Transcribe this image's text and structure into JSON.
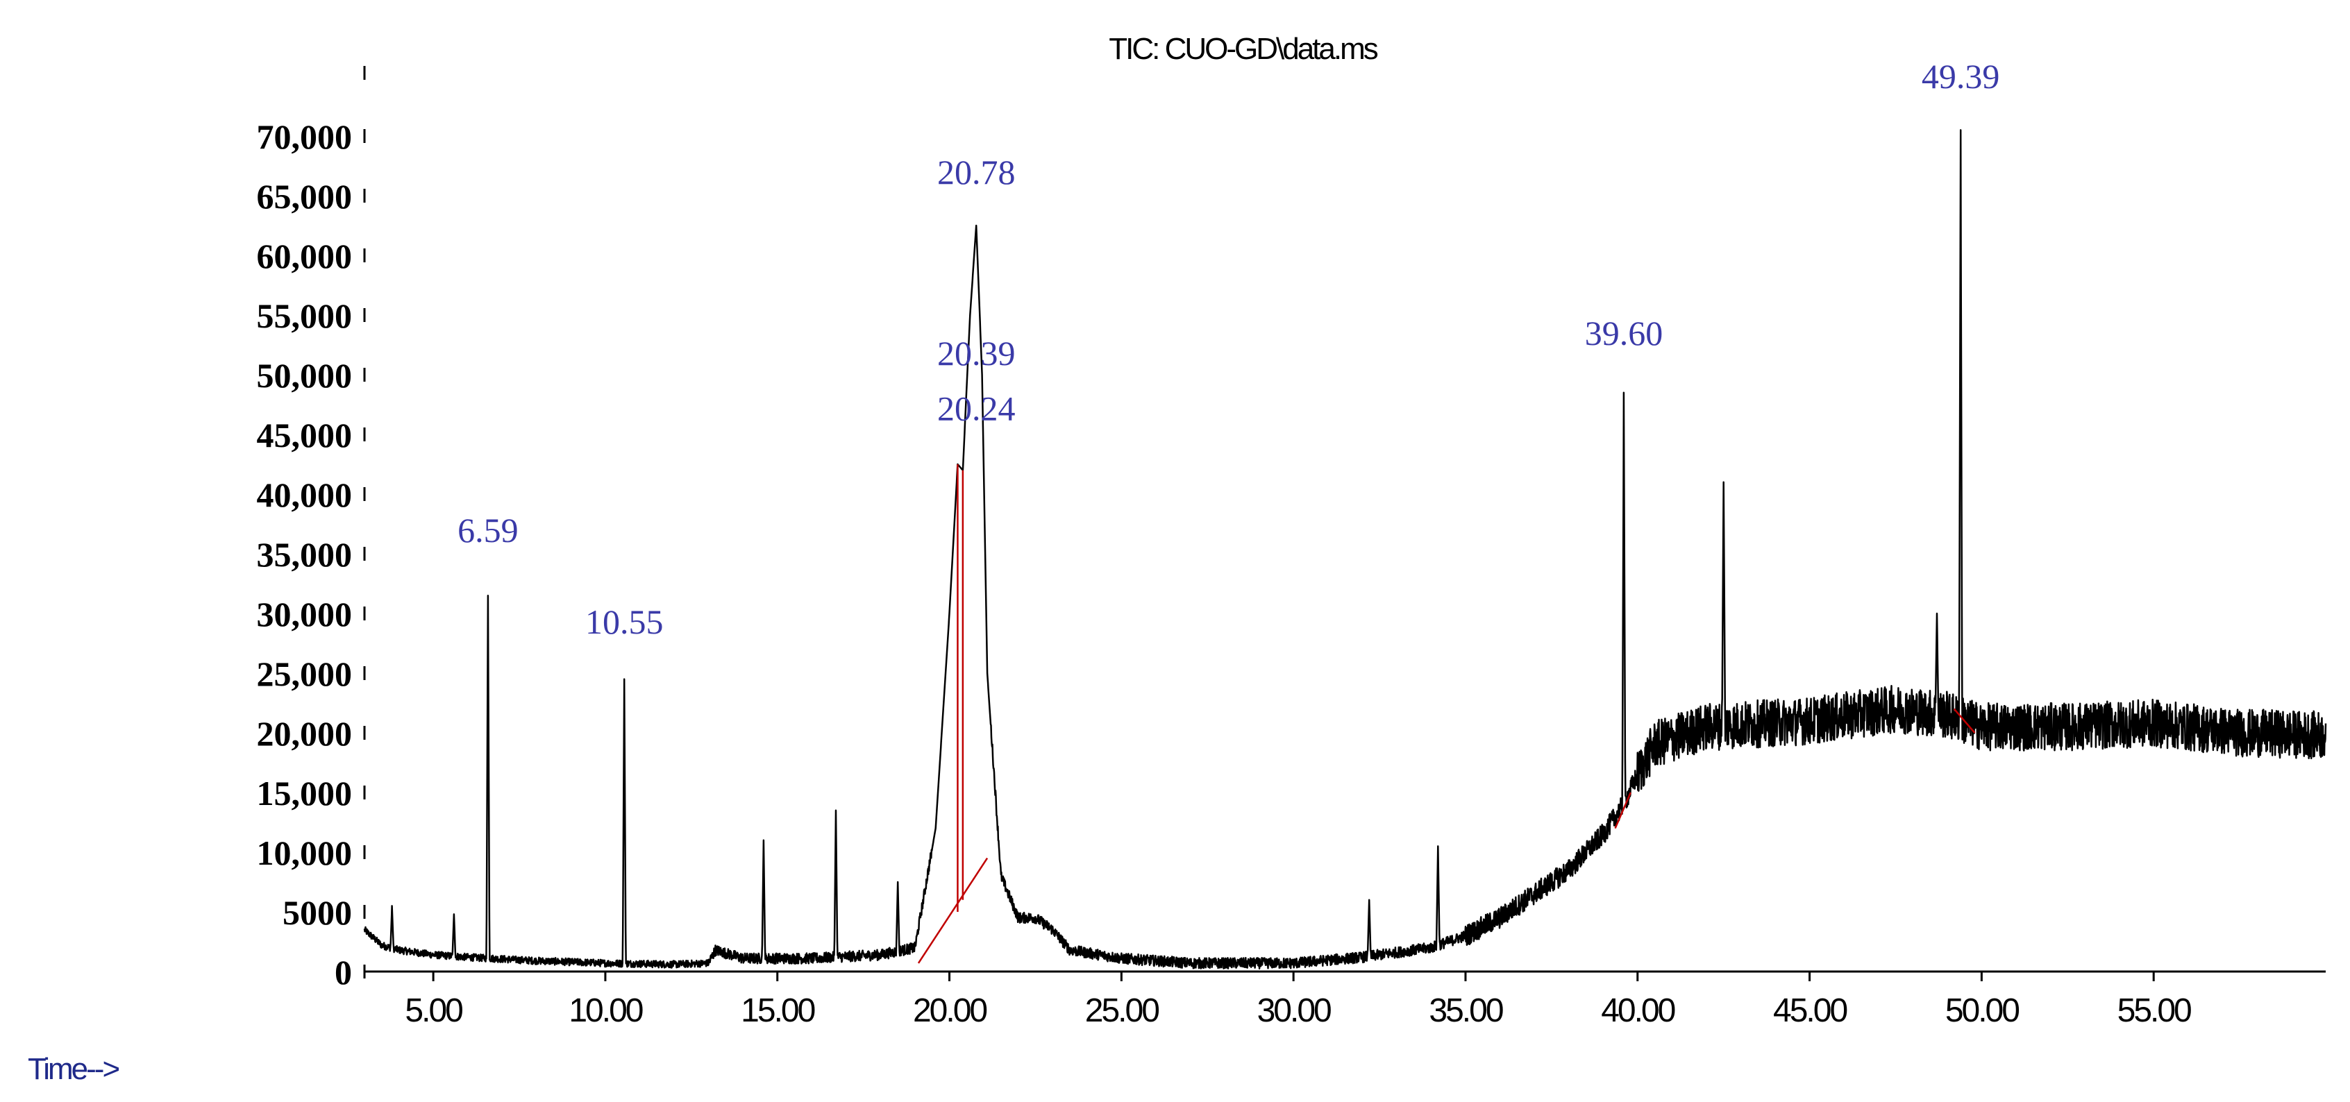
{
  "chart_data": {
    "type": "line",
    "title": "TIC: CUO-GD\\data.ms",
    "xlabel": "Time-->",
    "ylabel": "",
    "xlim": [
      3.0,
      60.0
    ],
    "ylim": [
      0,
      75000
    ],
    "x_ticks": [
      5,
      10,
      15,
      20,
      25,
      30,
      35,
      40,
      45,
      50,
      55
    ],
    "x_tick_labels": [
      "5.00",
      "10.00",
      "15.00",
      "20.00",
      "25.00",
      "30.00",
      "35.00",
      "40.00",
      "45.00",
      "50.00",
      "55.00"
    ],
    "y_ticks": [
      0,
      5000,
      10000,
      15000,
      20000,
      25000,
      30000,
      35000,
      40000,
      45000,
      50000,
      55000,
      60000,
      65000,
      70000
    ],
    "y_tick_labels": [
      "0",
      "5000",
      "10,000",
      "15,000",
      "20,000",
      "25,000",
      "30,000",
      "35,000",
      "40,000",
      "45,000",
      "50,000",
      "55,000",
      "60,000",
      "65,000",
      "70,000"
    ],
    "grid": false,
    "line_color": "#000000",
    "integration_color": "#c00000",
    "label_color": "#3a3aa8",
    "baseline": [
      [
        3.0,
        3500
      ],
      [
        3.5,
        2200
      ],
      [
        4.0,
        1800
      ],
      [
        5.0,
        1400
      ],
      [
        6.0,
        1200
      ],
      [
        8.0,
        900
      ],
      [
        10.0,
        700
      ],
      [
        12.0,
        600
      ],
      [
        13.0,
        700
      ],
      [
        13.2,
        1800
      ],
      [
        14.0,
        1100
      ],
      [
        16.0,
        1100
      ],
      [
        18.0,
        1400
      ],
      [
        19.0,
        2000
      ],
      [
        19.6,
        12000
      ],
      [
        20.0,
        30000
      ],
      [
        20.24,
        42500
      ],
      [
        20.39,
        42000
      ],
      [
        20.6,
        55000
      ],
      [
        20.78,
        62500
      ],
      [
        20.95,
        50000
      ],
      [
        21.1,
        25000
      ],
      [
        21.5,
        8000
      ],
      [
        22.0,
        4500
      ],
      [
        22.5,
        4500
      ],
      [
        23.0,
        3500
      ],
      [
        23.5,
        1800
      ],
      [
        25.0,
        1100
      ],
      [
        27.0,
        700
      ],
      [
        30.0,
        700
      ],
      [
        32.0,
        1200
      ],
      [
        34.0,
        2000
      ],
      [
        35.0,
        3000
      ],
      [
        36.0,
        4500
      ],
      [
        37.0,
        6500
      ],
      [
        38.0,
        8500
      ],
      [
        39.0,
        11500
      ],
      [
        39.6,
        14000
      ],
      [
        40.0,
        16500
      ],
      [
        40.5,
        19000
      ],
      [
        42.0,
        20500
      ],
      [
        45.0,
        21000
      ],
      [
        47.5,
        22000
      ],
      [
        49.0,
        21500
      ],
      [
        50.0,
        20500
      ],
      [
        52.5,
        20500
      ],
      [
        55.0,
        20800
      ],
      [
        57.5,
        20000
      ],
      [
        60.0,
        19800
      ]
    ],
    "noise": [
      {
        "x_from": 3.0,
        "x_to": 13.0,
        "amplitude": 300
      },
      {
        "x_from": 13.0,
        "x_to": 35.0,
        "amplitude": 450
      },
      {
        "x_from": 35.0,
        "x_to": 40.0,
        "amplitude": 900
      },
      {
        "x_from": 40.0,
        "x_to": 60.0,
        "amplitude": 2000
      }
    ],
    "spikes": [
      {
        "x": 3.8,
        "y": 5500
      },
      {
        "x": 5.6,
        "y": 4800
      },
      {
        "x": 6.59,
        "y": 31500
      },
      {
        "x": 10.55,
        "y": 24500
      },
      {
        "x": 14.6,
        "y": 11000
      },
      {
        "x": 16.7,
        "y": 13500
      },
      {
        "x": 18.5,
        "y": 7500
      },
      {
        "x": 32.2,
        "y": 6000
      },
      {
        "x": 34.2,
        "y": 10500
      },
      {
        "x": 39.6,
        "y": 48500
      },
      {
        "x": 42.5,
        "y": 41000
      },
      {
        "x": 48.7,
        "y": 30000
      },
      {
        "x": 49.39,
        "y": 70500
      }
    ],
    "integration_segments": [
      {
        "from": [
          19.1,
          700
        ],
        "to": [
          21.1,
          9500
        ]
      },
      {
        "from": [
          20.24,
          5000
        ],
        "to": [
          20.24,
          42500
        ]
      },
      {
        "from": [
          20.39,
          6000
        ],
        "to": [
          20.39,
          42000
        ]
      },
      {
        "from": [
          39.35,
          12000
        ],
        "to": [
          39.8,
          15000
        ]
      },
      {
        "from": [
          49.2,
          22000
        ],
        "to": [
          49.8,
          20000
        ]
      }
    ],
    "peak_labels": [
      {
        "text": "6.59",
        "x": 6.59,
        "y": 36000
      },
      {
        "text": "10.55",
        "x": 10.55,
        "y": 28300
      },
      {
        "text": "20.78",
        "x": 20.78,
        "y": 66000
      },
      {
        "text": "20.39",
        "x": 20.78,
        "y": 50800
      },
      {
        "text": "20.24",
        "x": 20.78,
        "y": 46200
      },
      {
        "text": "39.60",
        "x": 39.6,
        "y": 52500
      },
      {
        "text": "49.39",
        "x": 49.39,
        "y": 74000
      }
    ]
  }
}
